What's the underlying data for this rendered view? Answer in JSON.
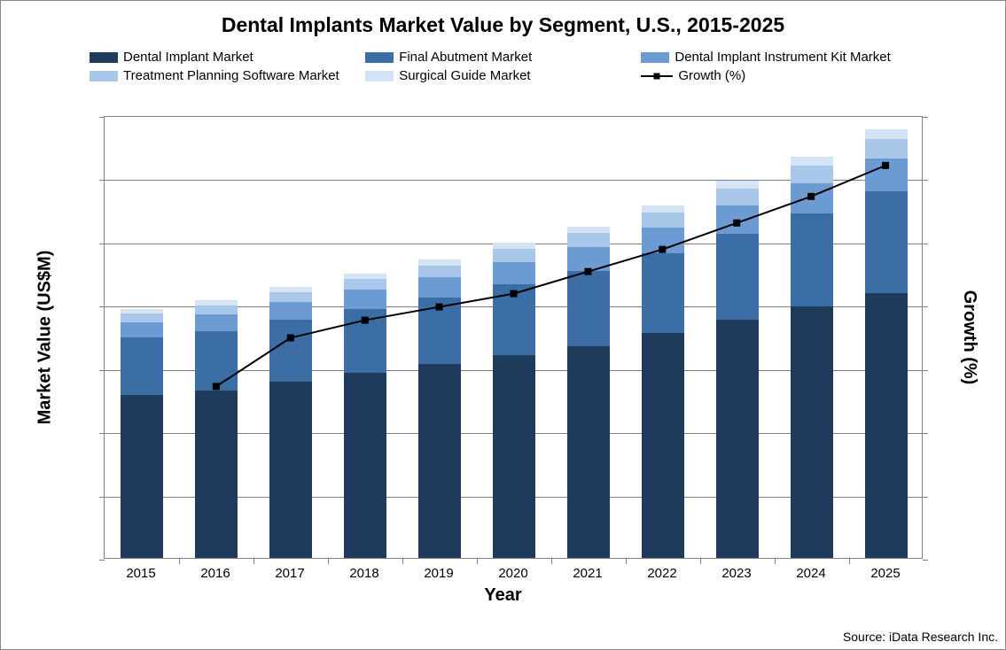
{
  "chart": {
    "type": "stacked-bar-with-line",
    "title": "Dental Implants Market Value by Segment, U.S., 2015-2025",
    "title_fontsize": 23,
    "xaxis": {
      "title": "Year",
      "title_fontsize": 20
    },
    "yaxis_left": {
      "title": "Market Value (US$M)",
      "title_fontsize": 20,
      "min": 0,
      "max": 100,
      "gridlines": 7
    },
    "yaxis_right": {
      "title": "Growth (%)",
      "title_fontsize": 20
    },
    "categories": [
      "2015",
      "2016",
      "2017",
      "2018",
      "2019",
      "2020",
      "2021",
      "2022",
      "2023",
      "2024",
      "2025"
    ],
    "series": [
      {
        "name": "Dental Implant Market",
        "color": "#1f3b5c",
        "values": [
          37,
          38,
          40,
          42,
          44,
          46,
          48,
          51,
          54,
          57,
          60
        ]
      },
      {
        "name": "Final Abutment Market",
        "color": "#3a6ea5",
        "values": [
          13,
          13.5,
          14,
          14.5,
          15,
          16,
          17,
          18,
          19.5,
          21,
          23
        ]
      },
      {
        "name": "Dental Implant Instrument Kit Market",
        "color": "#6b9bd2",
        "values": [
          3.5,
          3.7,
          4,
          4.3,
          4.6,
          5,
          5.4,
          5.8,
          6.3,
          6.8,
          7.4
        ]
      },
      {
        "name": "Treatment Planning Software Market",
        "color": "#a9c7e8",
        "values": [
          2,
          2.1,
          2.3,
          2.5,
          2.7,
          3,
          3.2,
          3.5,
          3.8,
          4.1,
          4.5
        ]
      },
      {
        "name": "Surgical Guide Market",
        "color": "#d4e4f4",
        "values": [
          1,
          1.05,
          1.1,
          1.2,
          1.3,
          1.4,
          1.5,
          1.6,
          1.8,
          1.9,
          2.1
        ]
      }
    ],
    "growth": {
      "name": "Growth (%)",
      "color": "#000000",
      "marker": "square",
      "values": [
        null,
        39,
        50,
        54,
        57,
        60,
        65,
        70,
        76,
        82,
        89
      ]
    },
    "bar_width_ratio": 0.58,
    "background": "#ffffff",
    "grid_color": "#808080",
    "border_color": "#808080",
    "legend": {
      "fontsize": 15,
      "item_widths_pct": [
        33,
        33,
        34,
        33,
        33,
        34
      ]
    },
    "source": "Source: iData Research Inc."
  }
}
